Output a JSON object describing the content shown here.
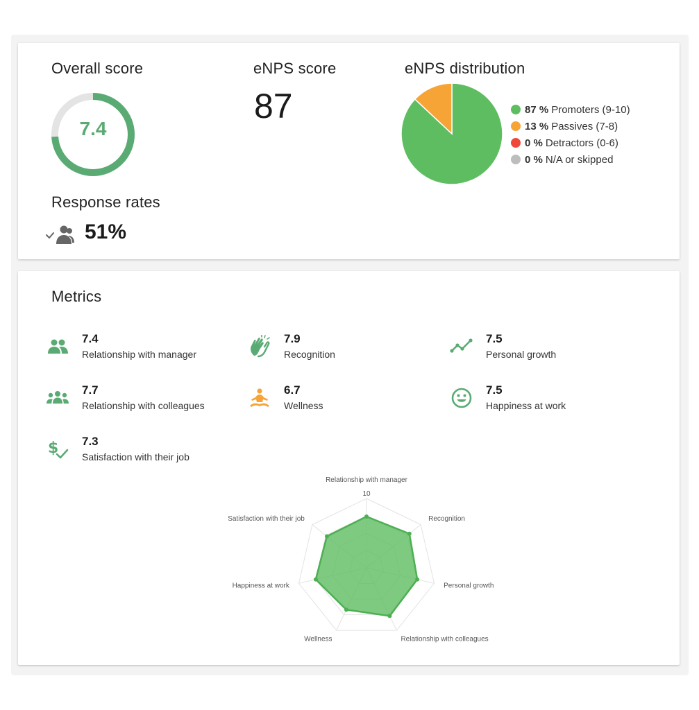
{
  "overall": {
    "title": "Overall score",
    "value": "7.4",
    "fraction": 0.74,
    "accent": "#5aab73",
    "track": "#e4e4e4"
  },
  "enps": {
    "title": "eNPS score",
    "value": "87"
  },
  "distribution": {
    "title": "eNPS distribution",
    "items": [
      {
        "pct": "87 %",
        "label": "Promoters (9-10)",
        "value": 87,
        "color": "#5fbd61"
      },
      {
        "pct": "13 %",
        "label": "Passives (7-8)",
        "value": 13,
        "color": "#f7a437"
      },
      {
        "pct": "0 %",
        "label": "Detractors (0-6)",
        "value": 0,
        "color": "#f0473a"
      },
      {
        "pct": "0 %",
        "label": "N/A or skipped",
        "value": 0,
        "color": "#bdbdbd"
      }
    ]
  },
  "response": {
    "title": "Response rates",
    "value": "51%",
    "icon": "people-check-icon"
  },
  "metrics": {
    "title": "Metrics",
    "items": [
      {
        "value": "7.4",
        "label": "Relationship with manager",
        "icon": "two-people-icon",
        "color": "#5aab73"
      },
      {
        "value": "7.9",
        "label": "Recognition",
        "icon": "clapping-hands-icon",
        "color": "#5aab73"
      },
      {
        "value": "7.5",
        "label": "Personal growth",
        "icon": "trend-line-icon",
        "color": "#5aab73"
      },
      {
        "value": "7.7",
        "label": "Relationship with colleagues",
        "icon": "group-icon",
        "color": "#5aab73"
      },
      {
        "value": "6.7",
        "label": "Wellness",
        "icon": "meditation-icon",
        "color": "#f7a437"
      },
      {
        "value": "7.5",
        "label": "Happiness at work",
        "icon": "smiley-icon",
        "color": "#5aab73"
      },
      {
        "value": "7.3",
        "label": "Satisfaction with their job",
        "icon": "dollar-check-icon",
        "color": "#5aab73"
      }
    ]
  },
  "chart_data": {
    "type": "radar",
    "max": 10,
    "max_label": "10",
    "axes": [
      "Relationship with manager",
      "Recognition",
      "Personal growth",
      "Relationship with colleagues",
      "Wellness",
      "Happiness at work",
      "Satisfaction with their job"
    ],
    "values": [
      7.4,
      7.9,
      7.5,
      7.7,
      6.7,
      7.5,
      7.3
    ],
    "fill": "#5fbd61",
    "stroke": "#4daf52",
    "grid": true
  }
}
